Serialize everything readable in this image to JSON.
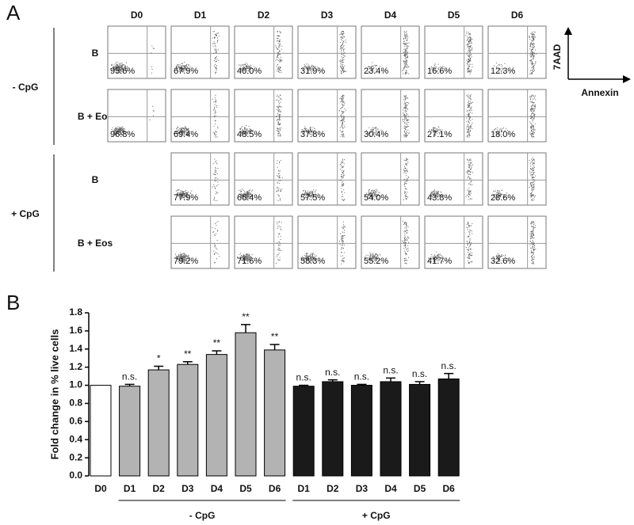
{
  "panel_a": {
    "label": "A",
    "columns": [
      "D0",
      "D1",
      "D2",
      "D3",
      "D4",
      "D5",
      "D6"
    ],
    "y_axis_label": "7AAD",
    "x_axis_label": "Annexin",
    "groups": [
      {
        "label": "- CpG",
        "rows": [
          {
            "label": "B",
            "values": [
              "95.6%",
              "67.9%",
              "40.0%",
              "31.9%",
              "23.4%",
              "16.6%",
              "12.3%"
            ]
          },
          {
            "label": "B + Eos",
            "values": [
              "96.8%",
              "69.4%",
              "48.5%",
              "37.8%",
              "30.4%",
              "27.1%",
              "18.0%"
            ]
          }
        ]
      },
      {
        "label": "+ CpG",
        "rows": [
          {
            "label": "B",
            "values": [
              null,
              "77.9%",
              "66.4%",
              "57.5%",
              "54.0%",
              "43.8%",
              "28.6%"
            ]
          },
          {
            "label": "B + Eos",
            "values": [
              null,
              "79.2%",
              "71.6%",
              "58.3%",
              "55.2%",
              "41.7%",
              "32.6%"
            ]
          }
        ]
      }
    ]
  },
  "chart_data": {
    "type": "bar",
    "label": "B",
    "y_label": "Fold change in % live cells",
    "categories": [
      "D0",
      "D1",
      "D2",
      "D3",
      "D4",
      "D5",
      "D6",
      "D1",
      "D2",
      "D3",
      "D4",
      "D5",
      "D6"
    ],
    "values": [
      1.0,
      0.99,
      1.17,
      1.23,
      1.34,
      1.58,
      1.39,
      0.99,
      1.04,
      1.0,
      1.04,
      1.01,
      1.07
    ],
    "errors": [
      0,
      0.02,
      0.04,
      0.03,
      0.04,
      0.09,
      0.06,
      0.01,
      0.02,
      0.01,
      0.04,
      0.03,
      0.06
    ],
    "colors": [
      "#ffffff",
      "#b3b3b3",
      "#b3b3b3",
      "#b3b3b3",
      "#b3b3b3",
      "#b3b3b3",
      "#b3b3b3",
      "#1a1a1a",
      "#1a1a1a",
      "#1a1a1a",
      "#1a1a1a",
      "#1a1a1a",
      "#1a1a1a"
    ],
    "annotations": [
      null,
      "n.s.",
      "*",
      "**",
      "**",
      "**",
      "**",
      "n.s.",
      "n.s.",
      "n.s.",
      "n.s.",
      "n.s.",
      "n.s."
    ],
    "groups": [
      "- CpG",
      "+ CpG"
    ],
    "ylim": [
      0,
      1.8
    ],
    "yticks": [
      {
        "value": 0,
        "label": "0.0"
      },
      {
        "value": 0.2,
        "label": "0.2"
      },
      {
        "value": 0.4,
        "label": "0.4"
      },
      {
        "value": 0.6,
        "label": "0.6"
      },
      {
        "value": 0.8,
        "label": "0.8"
      },
      {
        "value": 1.0,
        "label": "1.0"
      },
      {
        "value": 1.2,
        "label": "1.2"
      },
      {
        "value": 1.4,
        "label": "1.4"
      },
      {
        "value": 1.6,
        "label": "1.6"
      },
      {
        "value": 1.8,
        "label": "1.8"
      }
    ]
  }
}
